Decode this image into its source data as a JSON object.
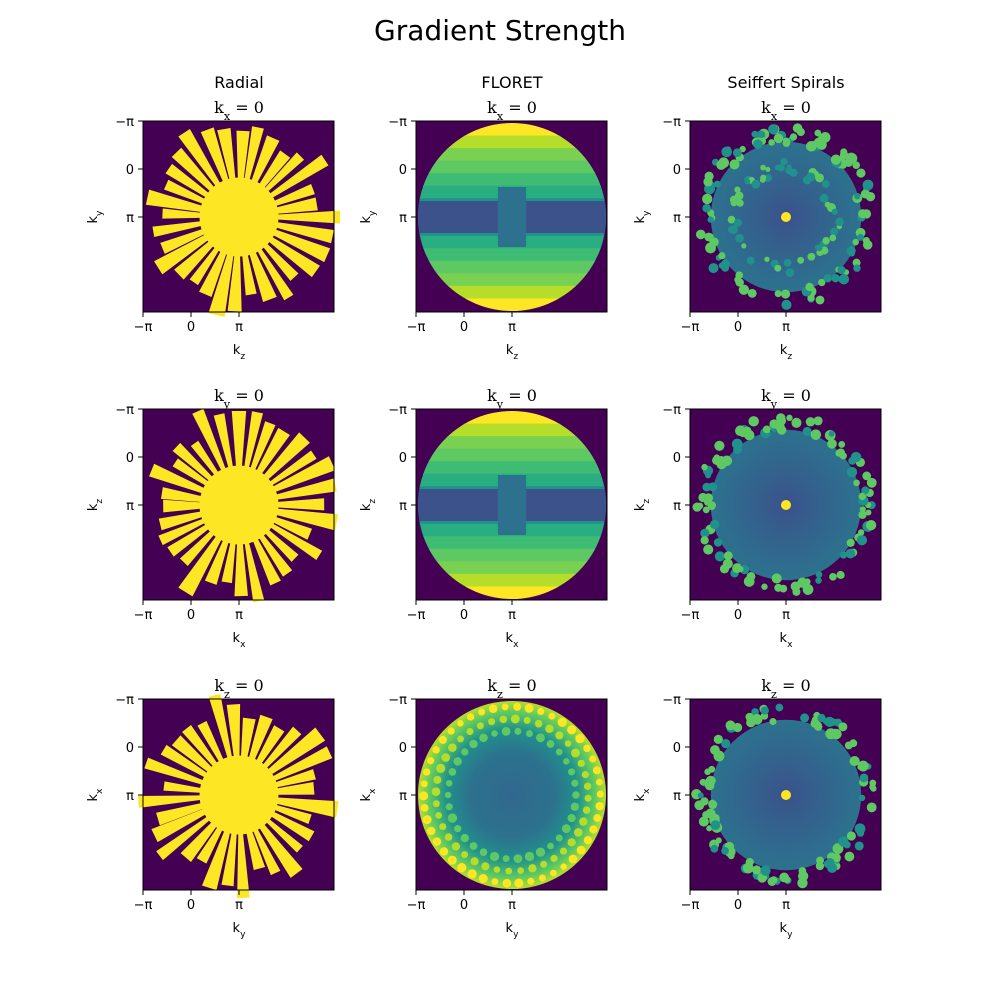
{
  "title": "Gradient Strength",
  "colors": {
    "background": "#440154",
    "low": "#3b528b",
    "mid": "#21918c",
    "high": "#5ec962",
    "max": "#fde725",
    "axis": "#000000"
  },
  "chart_data": [
    {
      "type": "heatmap",
      "pattern": "radial-spokes",
      "column_title": "Radial",
      "title": "k_x = 0",
      "title_axis": "x",
      "xlabel": "k_z",
      "ylabel": "k_y",
      "xaxis": "z",
      "yaxis": "y",
      "xticks": [
        "−π",
        "0",
        "π"
      ],
      "yticks": [
        "−π",
        "0",
        "π"
      ],
      "colormap": "viridis",
      "grid": false
    },
    {
      "type": "heatmap",
      "pattern": "floret-side",
      "column_title": "FLORET",
      "title": "k_x = 0",
      "title_axis": "x",
      "xlabel": "k_z",
      "ylabel": "k_y",
      "xaxis": "z",
      "yaxis": "y",
      "xticks": [
        "−π",
        "0",
        "π"
      ],
      "yticks": [
        "−π",
        "0",
        "π"
      ],
      "colormap": "viridis",
      "grid": false
    },
    {
      "type": "heatmap",
      "pattern": "spiral-ring",
      "column_title": "Seiffert Spirals",
      "title": "k_x = 0",
      "title_axis": "x",
      "xlabel": "k_z",
      "ylabel": "k_y",
      "xaxis": "z",
      "yaxis": "y",
      "xticks": [
        "−π",
        "0",
        "π"
      ],
      "yticks": [
        "−π",
        "0",
        "π"
      ],
      "colormap": "viridis",
      "grid": false
    },
    {
      "type": "heatmap",
      "pattern": "radial-spokes",
      "column_title": "",
      "title": "k_y = 0",
      "title_axis": "y",
      "xlabel": "k_x",
      "ylabel": "k_z",
      "xaxis": "x",
      "yaxis": "z",
      "xticks": [
        "−π",
        "0",
        "π"
      ],
      "yticks": [
        "−π",
        "0",
        "π"
      ],
      "colormap": "viridis",
      "grid": false
    },
    {
      "type": "heatmap",
      "pattern": "floret-side",
      "column_title": "",
      "title": "k_y = 0",
      "title_axis": "y",
      "xlabel": "k_x",
      "ylabel": "k_z",
      "xaxis": "x",
      "yaxis": "z",
      "xticks": [
        "−π",
        "0",
        "π"
      ],
      "yticks": [
        "−π",
        "0",
        "π"
      ],
      "colormap": "viridis",
      "grid": false
    },
    {
      "type": "heatmap",
      "pattern": "spiral-ring",
      "column_title": "",
      "title": "k_y = 0",
      "title_axis": "y",
      "xlabel": "k_x",
      "ylabel": "k_z",
      "xaxis": "x",
      "yaxis": "z",
      "xticks": [
        "−π",
        "0",
        "π"
      ],
      "yticks": [
        "−π",
        "0",
        "π"
      ],
      "colormap": "viridis",
      "grid": false
    },
    {
      "type": "heatmap",
      "pattern": "radial-spokes",
      "column_title": "",
      "title": "k_z = 0",
      "title_axis": "z",
      "xlabel": "k_y",
      "ylabel": "k_x",
      "xaxis": "y",
      "yaxis": "x",
      "xticks": [
        "−π",
        "0",
        "π"
      ],
      "yticks": [
        "−π",
        "0",
        "π"
      ],
      "colormap": "viridis",
      "grid": false
    },
    {
      "type": "heatmap",
      "pattern": "floret-front",
      "column_title": "",
      "title": "k_z = 0",
      "title_axis": "z",
      "xlabel": "k_y",
      "ylabel": "k_x",
      "xaxis": "y",
      "yaxis": "x",
      "xticks": [
        "−π",
        "0",
        "π"
      ],
      "yticks": [
        "−π",
        "0",
        "π"
      ],
      "colormap": "viridis",
      "grid": false
    },
    {
      "type": "heatmap",
      "pattern": "spiral-ring",
      "column_title": "",
      "title": "k_z = 0",
      "title_axis": "z",
      "xlabel": "k_y",
      "ylabel": "k_x",
      "xaxis": "y",
      "yaxis": "x",
      "xticks": [
        "−π",
        "0",
        "π"
      ],
      "yticks": [
        "−π",
        "0",
        "π"
      ],
      "colormap": "viridis",
      "grid": false
    }
  ]
}
